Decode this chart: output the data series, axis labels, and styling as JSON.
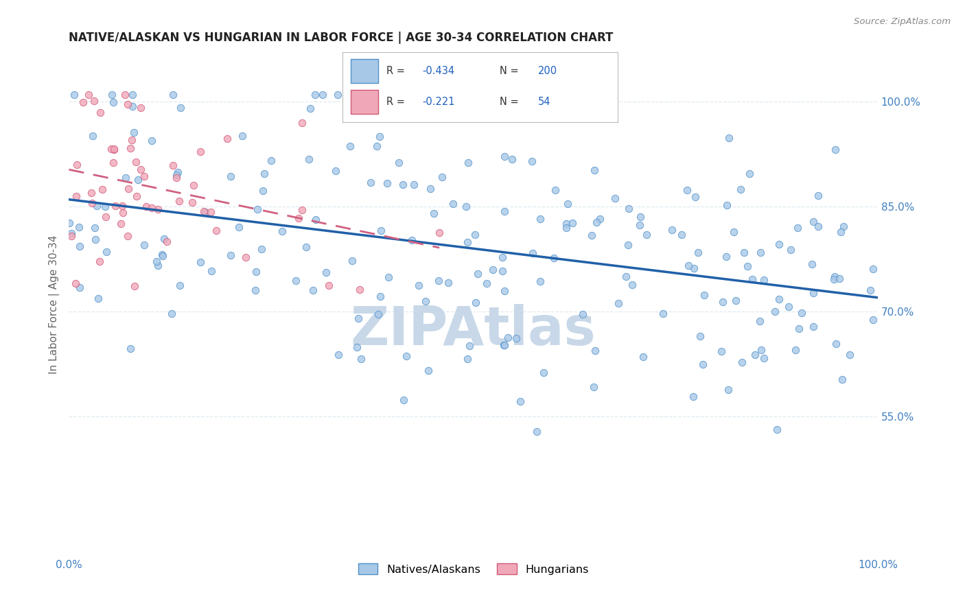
{
  "title": "NATIVE/ALASKAN VS HUNGARIAN IN LABOR FORCE | AGE 30-34 CORRELATION CHART",
  "source": "Source: ZipAtlas.com",
  "ylabel": "In Labor Force | Age 30-34",
  "xlim": [
    0.0,
    1.0
  ],
  "ylim": [
    0.35,
    1.07
  ],
  "xticks": [
    0.0,
    0.2,
    0.4,
    0.6,
    0.8,
    1.0
  ],
  "xticklabels": [
    "0.0%",
    "",
    "",
    "",
    "",
    "100.0%"
  ],
  "ytick_positions": [
    0.55,
    0.7,
    0.85,
    1.0
  ],
  "ytick_labels": [
    "55.0%",
    "70.0%",
    "85.0%",
    "100.0%"
  ],
  "blue_fill": "#a8c8e8",
  "blue_edge": "#5090c8",
  "pink_fill": "#f0a8b8",
  "pink_edge": "#d05878",
  "blue_line": "#2060a8",
  "pink_line": "#d06080",
  "watermark_color": "#c8d8e8",
  "R_native": -0.434,
  "N_native": 200,
  "R_hungarian": -0.221,
  "N_hungarian": 54,
  "bg_color": "#ffffff",
  "grid_color": "#dce8f0",
  "axis_text_color": "#4080c0",
  "legend_text_color": "#2060c0",
  "bottom_legend": [
    "Natives/Alaskans",
    "Hungarians"
  ],
  "native_seed": 42,
  "hungarian_seed": 7
}
